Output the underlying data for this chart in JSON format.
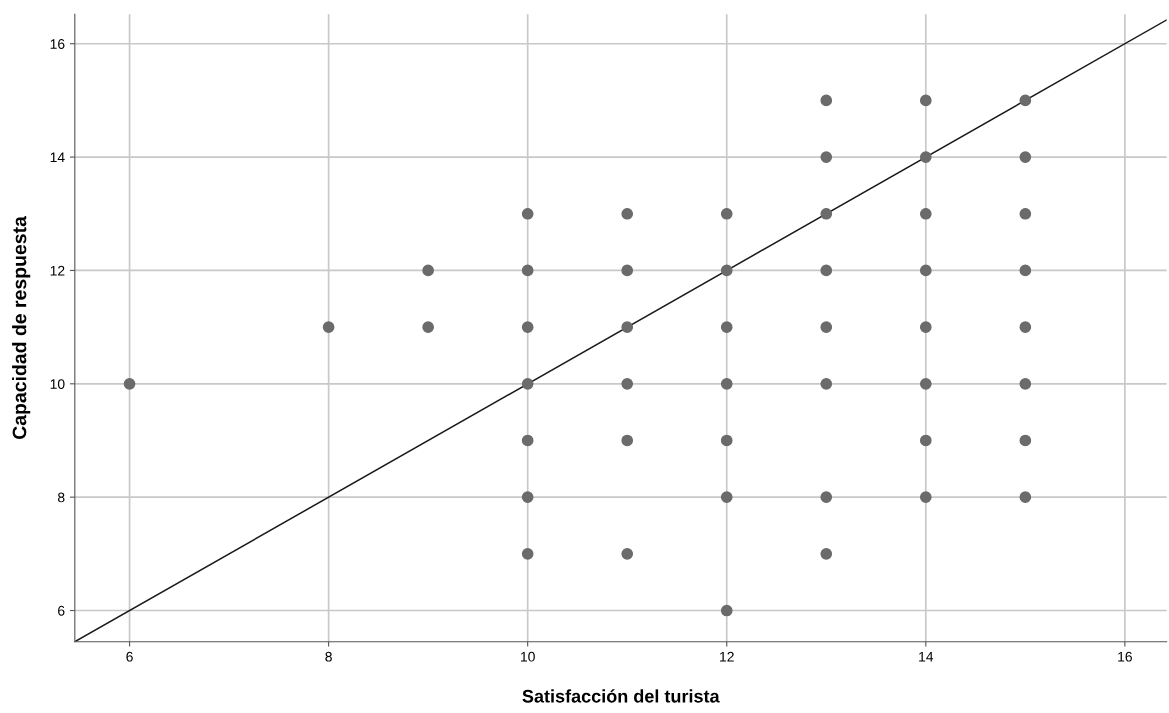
{
  "chart_data": {
    "type": "scatter",
    "xlabel": "Satisfacción del turista",
    "ylabel": "Capacidad de respuesta",
    "xlim": [
      5.45,
      16.42
    ],
    "ylim": [
      5.45,
      16.52
    ],
    "xticks": [
      6,
      8,
      10,
      12,
      14,
      16
    ],
    "yticks": [
      6,
      8,
      10,
      12,
      14,
      16
    ],
    "grid": true,
    "marker": "circle",
    "series": [
      {
        "color": "#6b6b6b",
        "x": [
          6,
          8,
          9,
          9,
          10,
          10,
          10,
          10,
          10,
          10,
          10,
          11,
          11,
          11,
          11,
          11,
          11,
          12,
          12,
          12,
          12,
          12,
          12,
          12,
          13,
          13,
          13,
          13,
          13,
          13,
          13,
          13,
          14,
          14,
          14,
          14,
          14,
          14,
          14,
          14,
          15,
          15,
          15,
          15,
          15,
          15,
          15,
          15
        ],
        "values": [
          10,
          11,
          12,
          11,
          13,
          12,
          11,
          10,
          9,
          8,
          7,
          13,
          12,
          11,
          10,
          9,
          7,
          13,
          12,
          11,
          10,
          9,
          8,
          6,
          15,
          14,
          13,
          12,
          11,
          10,
          8,
          7,
          15,
          14,
          13,
          12,
          11,
          10,
          9,
          8,
          15,
          14,
          13,
          12,
          11,
          10,
          9,
          8
        ]
      },
      {
        "type": "line",
        "color": "#1a1a1a",
        "marker": "none",
        "x": [
          5.45,
          16.42
        ],
        "values": [
          5.45,
          16.42
        ]
      }
    ]
  }
}
